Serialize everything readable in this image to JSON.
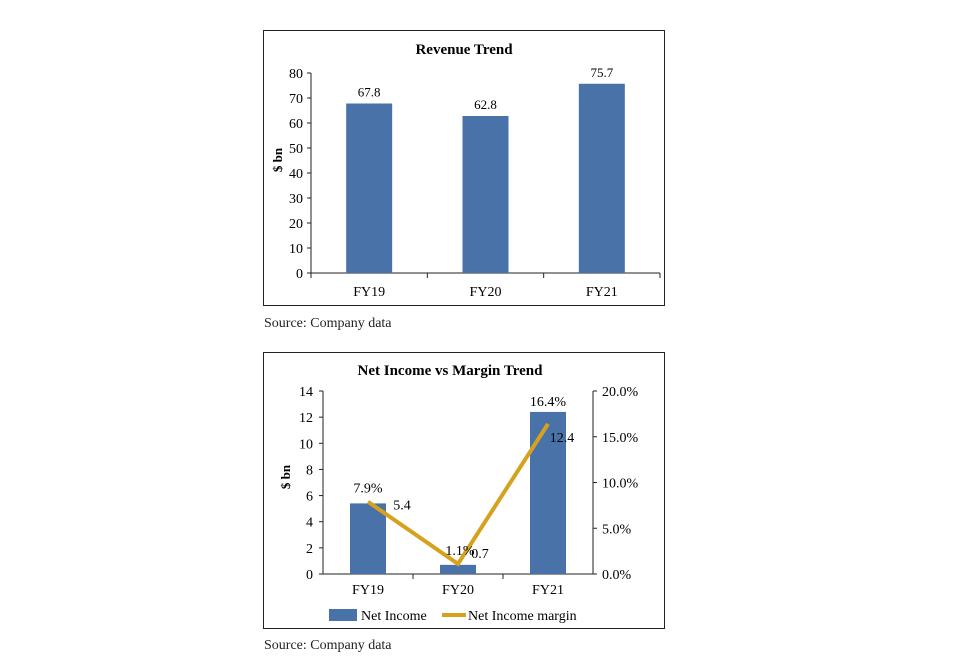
{
  "colors": {
    "bar": "#4872a8",
    "line": "#d6a21e",
    "axis": "#222222"
  },
  "sources": [
    "Source: Company data",
    "Source: Company data"
  ],
  "chart_data": [
    {
      "type": "bar",
      "title": "Revenue Trend",
      "ylabel": "$ bn",
      "xlabel": "",
      "categories": [
        "FY19",
        "FY20",
        "FY21"
      ],
      "values": [
        67.8,
        62.8,
        75.7
      ],
      "data_labels": [
        "67.8",
        "62.8",
        "75.7"
      ],
      "ylim": [
        0,
        80
      ],
      "yticks": [
        0,
        10,
        20,
        30,
        40,
        50,
        60,
        70,
        80
      ],
      "ytick_labels": [
        "0",
        "10",
        "20",
        "30",
        "40",
        "50",
        "60",
        "70",
        "80"
      ],
      "grid": false
    },
    {
      "type": "bar+line",
      "title": "Net Income vs Margin Trend",
      "ylabel": "$ bn",
      "categories": [
        "FY19",
        "FY20",
        "FY21"
      ],
      "series": [
        {
          "name": "Net Income",
          "type": "bar",
          "axis": "left",
          "values": [
            5.4,
            0.7,
            12.4
          ],
          "data_labels": [
            "5.4",
            "0.7",
            "12.4"
          ]
        },
        {
          "name": "Net Income margin",
          "type": "line",
          "axis": "right",
          "values": [
            7.9,
            1.1,
            16.4
          ],
          "data_labels": [
            "7.9%",
            "1.1%",
            "16.4%"
          ]
        }
      ],
      "ylim": [
        0,
        14
      ],
      "yticks": [
        0,
        2,
        4,
        6,
        8,
        10,
        12,
        14
      ],
      "ytick_labels": [
        "0",
        "2",
        "4",
        "6",
        "8",
        "10",
        "12",
        "14"
      ],
      "y2lim": [
        0,
        20
      ],
      "y2ticks": [
        0,
        5,
        10,
        15,
        20
      ],
      "y2tick_labels": [
        "0.0%",
        "5.0%",
        "10.0%",
        "15.0%",
        "20.0%"
      ],
      "legend": [
        "Net Income",
        "Net Income margin"
      ],
      "legend_position": "bottom",
      "grid": false
    }
  ]
}
